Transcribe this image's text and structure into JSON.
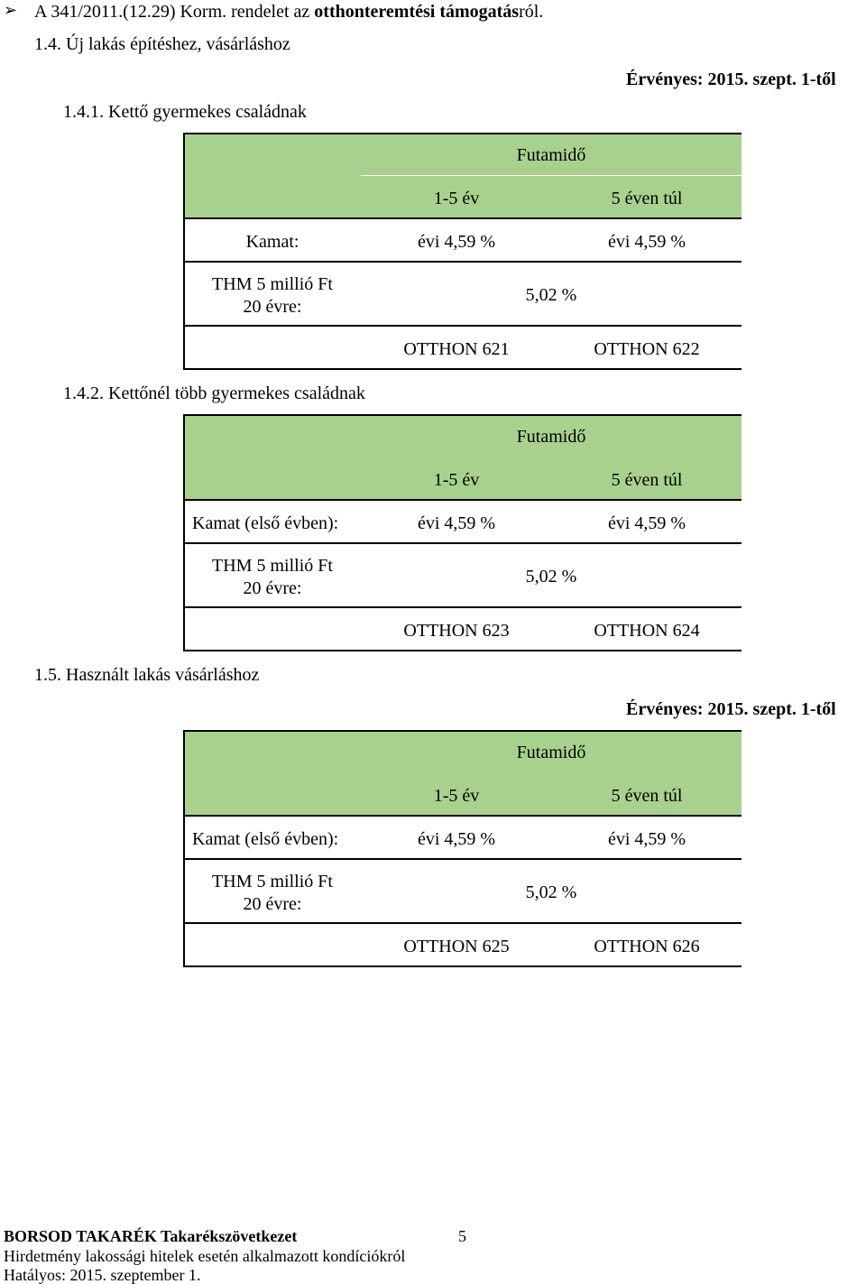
{
  "header": {
    "bullet_icon": "arrowhead-bullet-icon",
    "regulation_plain": "A 341/2011.(12.29) Korm. rendelet az",
    "regulation_bold": "otthonteremtési támogatás",
    "regulation_suffix": "ról.",
    "section_1_4": "1.4.  Új lakás építéshez, vásárláshoz",
    "valid_from": "Érvényes: 2015. szept. 1-től"
  },
  "tables": [
    {
      "title": "1.4.1.  Kettő gyermekes családnak",
      "futamido": "Futamidő",
      "col1": "1-5 év",
      "col2": "5 éven túl",
      "kamat_label": "Kamat:",
      "kamat_col1": "évi 4,59 %",
      "kamat_col2": "évi 4,59 %",
      "thm_label_line1": "THM 5 millió Ft",
      "thm_label_line2": "20 évre:",
      "thm_value": "5,02 %",
      "code1": "OTTHON 621",
      "code2": "OTTHON 622"
    },
    {
      "title": "1.4.2.  Kettőnél több gyermekes családnak",
      "futamido": "Futamidő",
      "col1": "1-5 év",
      "col2": "5 éven túl",
      "kamat_label": "Kamat (első évben):",
      "kamat_col1": "évi 4,59 %",
      "kamat_col2": "évi 4,59 %",
      "thm_label_line1": "THM 5 millió Ft",
      "thm_label_line2": "20 évre:",
      "thm_value": "5,02 %",
      "code1": "OTTHON 623",
      "code2": "OTTHON 624"
    },
    {
      "title": "1.5. Használt lakás vásárláshoz",
      "futamido": "Futamidő",
      "col1": "1-5 év",
      "col2": "5 éven túl",
      "kamat_label": "Kamat (első évben):",
      "kamat_col1": "évi 4,59 %",
      "kamat_col2": "évi 4,59 %",
      "thm_label_line1": "THM 5 millió Ft",
      "thm_label_line2": "20 évre:",
      "thm_value": "5,02 %",
      "code1": "OTTHON 625",
      "code2": "OTTHON 626"
    }
  ],
  "valid_from_2": "Érvényes: 2015. szept. 1-től",
  "footer": {
    "bank_name": "BORSOD TAKARÉK Takarékszövetkezet",
    "page_number": "5",
    "notice": "Hirdetmény lakossági hitelek esetén alkalmazott kondíciókról",
    "effective": "Hatályos: 2015. szeptember 1."
  },
  "colors": {
    "header_fill": "#a9d18e",
    "line": "#000000"
  }
}
